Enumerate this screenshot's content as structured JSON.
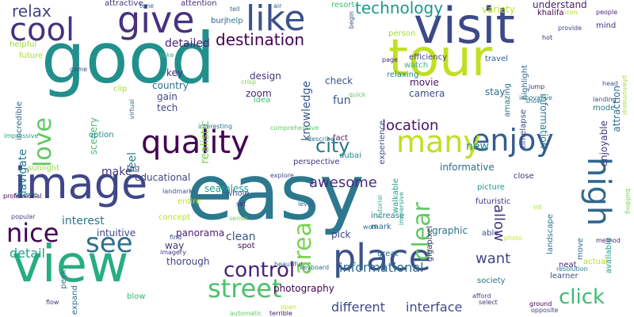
{
  "words": [
    {
      "text": "easy",
      "size": 96,
      "color": "#2c788e"
    },
    {
      "text": "good",
      "size": 88,
      "color": "#21908d"
    },
    {
      "text": "view",
      "size": 64,
      "color": "#27ad81"
    },
    {
      "text": "tour",
      "size": 64,
      "color": "#c2df23"
    },
    {
      "text": "visit",
      "size": 62,
      "color": "#3e4989"
    },
    {
      "text": "image",
      "size": 54,
      "color": "#3f4788"
    },
    {
      "text": "give",
      "size": 46,
      "color": "#46327e"
    },
    {
      "text": "place",
      "size": 46,
      "color": "#3b528b"
    },
    {
      "text": "like",
      "size": 44,
      "color": "#3b528b"
    },
    {
      "text": "quality",
      "size": 40,
      "color": "#440154"
    },
    {
      "text": "high",
      "size": 40,
      "color": "#31688e"
    },
    {
      "text": "cool",
      "size": 40,
      "color": "#46327e"
    },
    {
      "text": "enjoy",
      "size": 38,
      "color": "#365c8d"
    },
    {
      "text": "many",
      "size": 38,
      "color": "#c2df23"
    },
    {
      "text": "see",
      "size": 34,
      "color": "#2e6f8e"
    },
    {
      "text": "nice",
      "size": 32,
      "color": "#440154"
    },
    {
      "text": "street",
      "size": 32,
      "color": "#4ac16d"
    },
    {
      "text": "love",
      "size": 30,
      "color": "#5ec962"
    },
    {
      "text": "area",
      "size": 30,
      "color": "#7ad151"
    },
    {
      "text": "clear",
      "size": 30,
      "color": "#5ec962"
    },
    {
      "text": "control",
      "size": 26,
      "color": "#482475"
    },
    {
      "text": "click",
      "size": 26,
      "color": "#3dbc74"
    },
    {
      "text": "city",
      "size": 24,
      "color": "#2a788e"
    },
    {
      "text": "destination",
      "size": 20,
      "color": "#440154"
    },
    {
      "text": "technology",
      "size": 20,
      "color": "#1f988b"
    },
    {
      "text": "relax",
      "size": 20,
      "color": "#414487"
    },
    {
      "text": "location",
      "size": 18,
      "color": "#481467"
    },
    {
      "text": "awesome",
      "size": 18,
      "color": "#472d7b"
    },
    {
      "text": "allow",
      "size": 18,
      "color": "#46337f"
    },
    {
      "text": "want",
      "size": 18,
      "color": "#3f4889"
    },
    {
      "text": "detail",
      "size": 16,
      "color": "#1fa188"
    },
    {
      "text": "informational",
      "size": 16,
      "color": "#2d708e"
    },
    {
      "text": "different",
      "size": 16,
      "color": "#3e4989"
    },
    {
      "text": "interface",
      "size": 16,
      "color": "#3e4989"
    },
    {
      "text": "make",
      "size": 14,
      "color": "#453781"
    },
    {
      "text": "new",
      "size": 14,
      "color": "#228c8d"
    },
    {
      "text": "fun",
      "size": 14,
      "color": "#3b528b"
    },
    {
      "text": "clean",
      "size": 14,
      "color": "#39568c"
    },
    {
      "text": "interest",
      "size": 14,
      "color": "#2a788e"
    },
    {
      "text": "feel",
      "size": 14,
      "color": "#25838e"
    },
    {
      "text": "navigate",
      "size": 14,
      "color": "#2a788e"
    },
    {
      "text": "knowledge",
      "size": 14,
      "color": "#39568c"
    },
    {
      "text": "detailed",
      "size": 14,
      "color": "#482475"
    },
    {
      "text": "realistic",
      "size": 14,
      "color": "#7ad151"
    },
    {
      "text": "intuitive",
      "size": 12,
      "color": "#404688"
    },
    {
      "text": "seamless",
      "size": 12,
      "color": "#1f9a8a"
    },
    {
      "text": "informative",
      "size": 12,
      "color": "#2e6f8e"
    },
    {
      "text": "variety",
      "size": 12,
      "color": "#bddf26"
    },
    {
      "text": "understand",
      "size": 12,
      "color": "#481f70"
    },
    {
      "text": "information",
      "size": 12,
      "color": "#277f8e"
    },
    {
      "text": "attraction",
      "size": 12,
      "color": "#2f6c8e"
    },
    {
      "text": "enjoyable",
      "size": 12,
      "color": "#453882"
    },
    {
      "text": "graphic",
      "size": 12,
      "color": "#2c728e"
    },
    {
      "text": "way",
      "size": 12,
      "color": "#46327e"
    },
    {
      "text": "panorama",
      "size": 12,
      "color": "#482173"
    },
    {
      "text": "photography",
      "size": 12,
      "color": "#440154"
    },
    {
      "text": "zoom",
      "size": 12,
      "color": "#472a7a"
    },
    {
      "text": "tech",
      "size": 12,
      "color": "#404688"
    },
    {
      "text": "gain",
      "size": 12,
      "color": "#3f4788"
    },
    {
      "text": "key",
      "size": 12,
      "color": "#482878"
    },
    {
      "text": "country",
      "size": 12,
      "color": "#2c718e"
    },
    {
      "text": "scenery",
      "size": 12,
      "color": "#44bf70"
    },
    {
      "text": "educational",
      "size": 12,
      "color": "#414487"
    },
    {
      "text": "design",
      "size": 12,
      "color": "#46337f"
    },
    {
      "text": "check",
      "size": 12,
      "color": "#3b528b"
    },
    {
      "text": "movie",
      "size": 12,
      "color": "#471164"
    },
    {
      "text": "camera",
      "size": 12,
      "color": "#3d4e8a"
    },
    {
      "text": "stay",
      "size": 12,
      "color": "#2e6e8e"
    },
    {
      "text": "thorough",
      "size": 12,
      "color": "#414487"
    },
    {
      "text": "pick",
      "size": 12,
      "color": "#3f4788"
    },
    {
      "text": "spot",
      "size": 10,
      "color": "#450559"
    },
    {
      "text": "concept",
      "size": 10,
      "color": "#b5de2b"
    },
    {
      "text": "increase",
      "size": 10,
      "color": "#2a788e"
    },
    {
      "text": "mark",
      "size": 10,
      "color": "#32648e"
    },
    {
      "text": "whole",
      "size": 10,
      "color": "#3b528b"
    },
    {
      "text": "option",
      "size": 10,
      "color": "#25858e"
    },
    {
      "text": "scene",
      "size": 10,
      "color": "#218f8d"
    },
    {
      "text": "sunlight",
      "size": 10,
      "color": "#9bd93c"
    },
    {
      "text": "tag",
      "size": 10,
      "color": "#404688"
    },
    {
      "text": "fact",
      "size": 10,
      "color": "#481b6d"
    },
    {
      "text": "dubai",
      "size": 10,
      "color": "#23898e"
    },
    {
      "text": "perspective",
      "size": 10,
      "color": "#453781"
    },
    {
      "text": "idea",
      "size": 10,
      "color": "#3dbc74"
    },
    {
      "text": "help",
      "size": 10,
      "color": "#287c8e"
    },
    {
      "text": "watch",
      "size": 10,
      "color": "#35b779"
    },
    {
      "text": "relaxing",
      "size": 10,
      "color": "#23898e"
    },
    {
      "text": "person",
      "size": 10,
      "color": "#a2da37"
    },
    {
      "text": "efficiency",
      "size": 10,
      "color": "#433e85"
    },
    {
      "text": "travel",
      "size": 10,
      "color": "#33638d"
    },
    {
      "text": "amazing",
      "size": 10,
      "color": "#2c728e"
    },
    {
      "text": "highlight",
      "size": 10,
      "color": "#31688e"
    },
    {
      "text": "timelapse",
      "size": 10,
      "color": "#3e4989"
    },
    {
      "text": "mode",
      "size": 10,
      "color": "#2a788e"
    },
    {
      "text": "mind",
      "size": 10,
      "color": "#46327e"
    },
    {
      "text": "khalifa",
      "size": 10,
      "color": "#440154"
    },
    {
      "text": "burj",
      "size": 10,
      "color": "#35608d"
    },
    {
      "text": "attractive",
      "size": 10,
      "color": "#46337f"
    },
    {
      "text": "attention",
      "size": 10,
      "color": "#472f7d"
    },
    {
      "text": "resort",
      "size": 10,
      "color": "#3dbc74"
    },
    {
      "text": "clip",
      "size": 10,
      "color": "#a8db34"
    },
    {
      "text": "helpful",
      "size": 10,
      "color": "#9bd93c"
    },
    {
      "text": "future",
      "size": 10,
      "color": "#a8db34"
    },
    {
      "text": "incredible",
      "size": 10,
      "color": "#34618d"
    },
    {
      "text": "experience",
      "size": 10,
      "color": "#3b528b"
    },
    {
      "text": "close",
      "size": 10,
      "color": "#472f7d"
    },
    {
      "text": "picture",
      "size": 10,
      "color": "#1f9a8a"
    },
    {
      "text": "futuristic",
      "size": 10,
      "color": "#46337f"
    },
    {
      "text": "walkable",
      "size": 10,
      "color": "#1fa188"
    },
    {
      "text": "gigapixel",
      "size": 10,
      "color": "#482878"
    },
    {
      "text": "great",
      "size": 10,
      "color": "#2d708e"
    },
    {
      "text": "able",
      "size": 10,
      "color": "#3b528b"
    },
    {
      "text": "society",
      "size": 10,
      "color": "#2c728e"
    },
    {
      "text": "neat",
      "size": 10,
      "color": "#482475"
    },
    {
      "text": "learner",
      "size": 10,
      "color": "#3b528b"
    },
    {
      "text": "landscape",
      "size": 10,
      "color": "#2e6f8e"
    },
    {
      "text": "actual",
      "size": 10,
      "color": "#b8de29"
    },
    {
      "text": "expand",
      "size": 10,
      "color": "#2e6f8e"
    },
    {
      "text": "blow",
      "size": 10,
      "color": "#35b779"
    },
    {
      "text": "peek",
      "size": 10,
      "color": "#2c728e"
    },
    {
      "text": "entire",
      "size": 10,
      "color": "#cae11f"
    },
    {
      "text": "move",
      "size": 10,
      "color": "#2e6e8e"
    },
    {
      "text": "available",
      "size": 10,
      "color": "#1f9a8a"
    },
    {
      "text": "phenomenal",
      "size": 8,
      "color": "#a8db34"
    },
    {
      "text": "provide",
      "size": 8,
      "color": "#3f4788"
    },
    {
      "text": "people",
      "size": 8,
      "color": "#482878"
    },
    {
      "text": "icon",
      "size": 8,
      "color": "#b5de2b"
    },
    {
      "text": "hot",
      "size": 8,
      "color": "#482878"
    },
    {
      "text": "begin",
      "size": 8,
      "color": "#3b528b"
    },
    {
      "text": "air",
      "size": 8,
      "color": "#35608d"
    },
    {
      "text": "tell",
      "size": 8,
      "color": "#33638d"
    },
    {
      "text": "time",
      "size": 8,
      "color": "#33638d"
    },
    {
      "text": "take",
      "size": 8,
      "color": "#35b779"
    },
    {
      "text": "page",
      "size": 8,
      "color": "#472c7a"
    },
    {
      "text": "quick",
      "size": 8,
      "color": "#5ec962"
    },
    {
      "text": "crisp",
      "size": 8,
      "color": "#7ad151"
    },
    {
      "text": "innovative",
      "size": 8,
      "color": "#2a788e"
    },
    {
      "text": "tutorial",
      "size": 8,
      "color": "#34b679"
    },
    {
      "text": "landing",
      "size": 8,
      "color": "#3e4989"
    },
    {
      "text": "head",
      "size": 8,
      "color": "#39568c"
    },
    {
      "text": "show",
      "size": 8,
      "color": "#2a788e"
    },
    {
      "text": "come",
      "size": 8,
      "color": "#3e4989"
    },
    {
      "text": "virtual",
      "size": 8,
      "color": "#2e6e8e"
    },
    {
      "text": "interesting",
      "size": 8,
      "color": "#2c718e"
    },
    {
      "text": "comprehensive",
      "size": 8,
      "color": "#5ec962"
    },
    {
      "text": "describe",
      "size": 8,
      "color": "#2a788e"
    },
    {
      "text": "immersive",
      "size": 8,
      "color": "#1fa188"
    },
    {
      "text": "impressive",
      "size": 8,
      "color": "#20a386"
    },
    {
      "text": "professional",
      "size": 8,
      "color": "#440154"
    },
    {
      "text": "landmark",
      "size": 8,
      "color": "#3b528b"
    },
    {
      "text": "explore",
      "size": 8,
      "color": "#3e4989"
    },
    {
      "text": "level",
      "size": 8,
      "color": "#34618d"
    },
    {
      "text": "popular",
      "size": 8,
      "color": "#404688"
    },
    {
      "text": "set",
      "size": 8,
      "color": "#482878"
    },
    {
      "text": "sense",
      "size": 8,
      "color": "#7ad151"
    },
    {
      "text": "work",
      "size": 8,
      "color": "#2c728e"
    },
    {
      "text": "find",
      "size": 8,
      "color": "#3e4989"
    },
    {
      "text": "imagery",
      "size": 8,
      "color": "#453781"
    },
    {
      "text": "beautiful",
      "size": 8,
      "color": "#33638d"
    },
    {
      "text": "keyboard",
      "size": 8,
      "color": "#2c718e"
    },
    {
      "text": "method",
      "size": 8,
      "color": "#482878"
    },
    {
      "text": "building",
      "size": 8,
      "color": "#7ad151"
    },
    {
      "text": "photo",
      "size": 8,
      "color": "#cae11f"
    },
    {
      "text": "int",
      "size": 8,
      "color": "#a2da37"
    },
    {
      "text": "jump",
      "size": 8,
      "color": "#482878"
    },
    {
      "text": "resolution",
      "size": 8,
      "color": "#2a788e"
    },
    {
      "text": "afford",
      "size": 8,
      "color": "#3f4788"
    },
    {
      "text": "select",
      "size": 8,
      "color": "#46327e"
    },
    {
      "text": "ground",
      "size": 8,
      "color": "#440154"
    },
    {
      "text": "opposite",
      "size": 8,
      "color": "#414487"
    },
    {
      "text": "automatic",
      "size": 8,
      "color": "#5ec962"
    },
    {
      "text": "terrible",
      "size": 8,
      "color": "#471164"
    },
    {
      "text": "open",
      "size": 8,
      "color": "#cae11f"
    },
    {
      "text": "flow",
      "size": 8,
      "color": "#46337f"
    }
  ]
}
